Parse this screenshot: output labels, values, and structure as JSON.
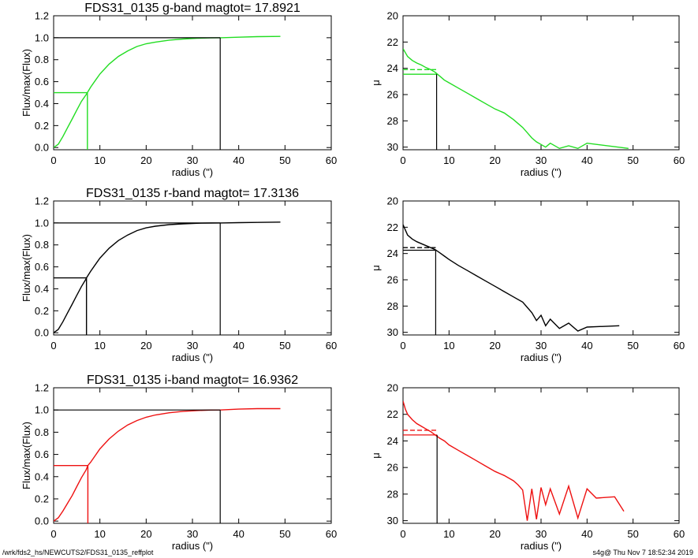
{
  "colors": {
    "g": "#22dd22",
    "r": "#000000",
    "i": "#ee1111",
    "axis": "#000000"
  },
  "footer": {
    "left": "/wrk/fds2_hs/NEWCUTS2/FDS31_0135_reffplot",
    "right": "s4g@  Thu Nov  7 18:52:34 2019"
  },
  "chart_data": [
    {
      "type": "line",
      "panel": "growth-g",
      "title": "FDS31_0135 g-band  magtot=     17.8921",
      "xlabel": "radius (\")",
      "ylabel": "Flux/max(Flux)",
      "xlim": [
        0,
        60
      ],
      "ylim": [
        -0.02,
        1.2
      ],
      "xticks": [
        0,
        10,
        20,
        30,
        40,
        50,
        60
      ],
      "yticks": [
        0.0,
        0.2,
        0.4,
        0.6,
        0.8,
        1.0,
        1.2
      ],
      "ytick_labels": [
        "0.0",
        "0.2",
        "0.4",
        "0.6",
        "0.8",
        "1.0",
        "1.2"
      ],
      "color": "#22dd22",
      "x": [
        0,
        1,
        2,
        3,
        4,
        5,
        6,
        7,
        7.3,
        8,
        9,
        10,
        12,
        14,
        16,
        18,
        20,
        22,
        25,
        28,
        31,
        34,
        36,
        40,
        44,
        49
      ],
      "y": [
        0,
        0.03,
        0.1,
        0.18,
        0.26,
        0.34,
        0.42,
        0.48,
        0.5,
        0.55,
        0.61,
        0.67,
        0.76,
        0.83,
        0.88,
        0.92,
        0.945,
        0.96,
        0.978,
        0.988,
        0.995,
        0.998,
        1.0,
        1.005,
        1.01,
        1.012
      ],
      "half_light_radius": 7.3,
      "total_radius": 36
    },
    {
      "type": "line",
      "panel": "profile-g",
      "xlabel": "radius (\")",
      "ylabel": "μ",
      "xlim": [
        0,
        60
      ],
      "ylim": [
        30.2,
        20
      ],
      "xticks": [
        0,
        10,
        20,
        30,
        40,
        50,
        60
      ],
      "yticks": [
        20,
        22,
        24,
        26,
        28,
        30
      ],
      "color": "#22dd22",
      "x": [
        0,
        0.5,
        1,
        2,
        3,
        4,
        5,
        6,
        7,
        8,
        9,
        10,
        12,
        14,
        16,
        18,
        20,
        22,
        24,
        25,
        26,
        27,
        28,
        29,
        30,
        31,
        32,
        34,
        36,
        38,
        40,
        49
      ],
      "y": [
        22.5,
        22.8,
        23.1,
        23.4,
        23.6,
        23.75,
        23.95,
        24.1,
        24.3,
        24.6,
        24.9,
        25.1,
        25.5,
        25.9,
        26.3,
        26.7,
        27.1,
        27.4,
        27.9,
        28.2,
        28.5,
        28.9,
        29.3,
        29.6,
        29.8,
        30.0,
        29.7,
        30.1,
        29.9,
        30.1,
        29.7,
        30.1
      ],
      "mu_e": 24.45,
      "mean_mu_e": 24.1,
      "r_e": 7.3
    },
    {
      "type": "line",
      "panel": "growth-r",
      "title": "FDS31_0135 r-band  magtot=     17.3136",
      "xlabel": "radius (\")",
      "ylabel": "Flux/max(Flux)",
      "xlim": [
        0,
        60
      ],
      "ylim": [
        -0.02,
        1.2
      ],
      "xticks": [
        0,
        10,
        20,
        30,
        40,
        50,
        60
      ],
      "yticks": [
        0.0,
        0.2,
        0.4,
        0.6,
        0.8,
        1.0,
        1.2
      ],
      "ytick_labels": [
        "0.0",
        "0.2",
        "0.4",
        "0.6",
        "0.8",
        "1.0",
        "1.2"
      ],
      "color": "#000000",
      "x": [
        0,
        1,
        2,
        3,
        4,
        5,
        6,
        7,
        7.1,
        8,
        9,
        10,
        12,
        14,
        16,
        18,
        20,
        22,
        25,
        28,
        31,
        34,
        36,
        40,
        44,
        49
      ],
      "y": [
        0,
        0.03,
        0.1,
        0.18,
        0.26,
        0.34,
        0.42,
        0.49,
        0.5,
        0.56,
        0.62,
        0.68,
        0.77,
        0.84,
        0.89,
        0.93,
        0.955,
        0.97,
        0.985,
        0.992,
        0.997,
        0.999,
        1.0,
        1.003,
        1.005,
        1.008
      ],
      "half_light_radius": 7.1,
      "total_radius": 36
    },
    {
      "type": "line",
      "panel": "profile-r",
      "xlabel": "radius (\")",
      "ylabel": "μ",
      "xlim": [
        0,
        60
      ],
      "ylim": [
        30.2,
        20
      ],
      "xticks": [
        0,
        10,
        20,
        30,
        40,
        50,
        60
      ],
      "yticks": [
        20,
        22,
        24,
        26,
        28,
        30
      ],
      "color": "#000000",
      "x": [
        0,
        0.5,
        1,
        2,
        3,
        4,
        5,
        6,
        7,
        8,
        9,
        10,
        12,
        14,
        16,
        18,
        20,
        22,
        24,
        26,
        27,
        28,
        29,
        30,
        31,
        32,
        34,
        36,
        38,
        40,
        47
      ],
      "y": [
        21.8,
        22.2,
        22.6,
        22.9,
        23.1,
        23.25,
        23.4,
        23.55,
        23.7,
        23.95,
        24.2,
        24.45,
        24.9,
        25.3,
        25.7,
        26.1,
        26.5,
        26.9,
        27.3,
        27.7,
        28.1,
        28.5,
        29.1,
        28.7,
        29.5,
        29.0,
        29.7,
        29.3,
        29.9,
        29.6,
        29.5
      ],
      "mu_e": 23.75,
      "mean_mu_e": 23.55,
      "r_e": 7.1
    },
    {
      "type": "line",
      "panel": "growth-i",
      "title": "FDS31_0135 i-band  magtot=     16.9362",
      "xlabel": "radius (\")",
      "ylabel": "Flux/max(Flux)",
      "xlim": [
        0,
        60
      ],
      "ylim": [
        -0.02,
        1.2
      ],
      "xticks": [
        0,
        10,
        20,
        30,
        40,
        50,
        60
      ],
      "yticks": [
        0.0,
        0.2,
        0.4,
        0.6,
        0.8,
        1.0,
        1.2
      ],
      "ytick_labels": [
        "0.0",
        "0.2",
        "0.4",
        "0.6",
        "0.8",
        "1.0",
        "1.2"
      ],
      "color": "#ee1111",
      "x": [
        0,
        1,
        2,
        3,
        4,
        5,
        6,
        7,
        7.4,
        8,
        9,
        10,
        12,
        14,
        16,
        18,
        20,
        22,
        25,
        28,
        31,
        34,
        36,
        40,
        44,
        49
      ],
      "y": [
        0,
        0.03,
        0.09,
        0.16,
        0.23,
        0.31,
        0.39,
        0.46,
        0.5,
        0.53,
        0.59,
        0.65,
        0.74,
        0.81,
        0.865,
        0.905,
        0.935,
        0.955,
        0.975,
        0.988,
        0.995,
        0.999,
        1.0,
        1.008,
        1.012,
        1.012
      ],
      "half_light_radius": 7.4,
      "total_radius": 36
    },
    {
      "type": "line",
      "panel": "profile-i",
      "xlabel": "radius (\")",
      "ylabel": "μ",
      "xlim": [
        0,
        60
      ],
      "ylim": [
        30.2,
        20
      ],
      "xticks": [
        0,
        10,
        20,
        30,
        40,
        50,
        60
      ],
      "yticks": [
        20,
        22,
        24,
        26,
        28,
        30
      ],
      "color": "#ee1111",
      "x": [
        0,
        0.5,
        1,
        2,
        3,
        4,
        5,
        6,
        7,
        8,
        9,
        10,
        12,
        14,
        16,
        18,
        20,
        22,
        24,
        25,
        26,
        27,
        28,
        29,
        30,
        31,
        32,
        34,
        36,
        38,
        40,
        42,
        46,
        48
      ],
      "y": [
        21.0,
        21.6,
        22.0,
        22.4,
        22.7,
        22.9,
        23.1,
        23.3,
        23.55,
        23.8,
        24.0,
        24.3,
        24.7,
        25.1,
        25.5,
        25.9,
        26.3,
        26.6,
        27.0,
        27.3,
        27.7,
        30.0,
        27.6,
        29.9,
        27.5,
        28.8,
        27.6,
        29.5,
        27.4,
        29.8,
        27.6,
        28.3,
        28.2,
        29.3
      ],
      "mu_e": 23.55,
      "mean_mu_e": 23.2,
      "r_e": 7.4
    }
  ]
}
